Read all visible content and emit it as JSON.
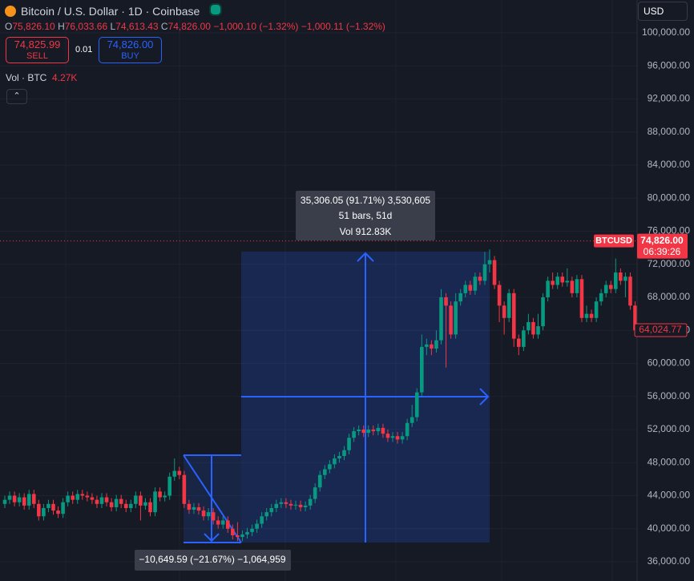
{
  "header": {
    "title": "Bitcoin / U.S. Dollar · 1D · Coinbase",
    "ohlc": [
      {
        "key": "O",
        "value": "75,826.10"
      },
      {
        "key": "H",
        "value": "76,033.66"
      },
      {
        "key": "L",
        "value": "74,613.43"
      },
      {
        "key": "C",
        "value": "74,826.00"
      }
    ],
    "change": "−1,000.10 (−1.32%)",
    "change_2": "−1,000.11 (−1.32%)",
    "sell_price": "74,825.99",
    "sell_label": "SELL",
    "quantity": "0.01",
    "buy_price": "74,826.00",
    "buy_label": "BUY",
    "volume_label": "Vol · BTC",
    "volume_value": "4.27K",
    "currency": "USD"
  },
  "chart_data": {
    "type": "candlestick",
    "up_color": "#089981",
    "down_color": "#f23645",
    "grid": true,
    "ylim": [
      33673,
      103976
    ],
    "yticks": [
      {
        "value": 36000,
        "label": "36,000.00"
      },
      {
        "value": 40000,
        "label": "40,000.00"
      },
      {
        "value": 44000,
        "label": "44,000.00"
      },
      {
        "value": 48000,
        "label": "48,000.00"
      },
      {
        "value": 52000,
        "label": "52,000.00"
      },
      {
        "value": 56000,
        "label": "56,000.00"
      },
      {
        "value": 60000,
        "label": "60,000.00"
      },
      {
        "value": 64000,
        "label": "64,000.00"
      },
      {
        "value": 68000,
        "label": "68,000.00"
      },
      {
        "value": 72000,
        "label": "72,000.00"
      },
      {
        "value": 76000,
        "label": "76,000.00"
      },
      {
        "value": 80000,
        "label": "80,000.00"
      },
      {
        "value": 84000,
        "label": "84,000.00"
      },
      {
        "value": 88000,
        "label": "88,000.00"
      },
      {
        "value": 92000,
        "label": "92,000.00"
      },
      {
        "value": 96000,
        "label": "96,000.00"
      },
      {
        "value": 100000,
        "label": "100,000.00"
      }
    ],
    "symbol": "BTCUSD",
    "last_price": {
      "value": 74826,
      "label": "74,826.00"
    },
    "countdown": "06:39:26",
    "marker": {
      "value": 64024.77,
      "label": "64,024.77"
    },
    "ohlc": [
      [
        43000,
        44000,
        42500,
        43500
      ],
      [
        43500,
        44500,
        43000,
        44000
      ],
      [
        44000,
        44500,
        42700,
        43200
      ],
      [
        43200,
        44300,
        42700,
        43800
      ],
      [
        43800,
        44300,
        42300,
        42800
      ],
      [
        42800,
        44700,
        42300,
        44200
      ],
      [
        44200,
        44700,
        42500,
        43000
      ],
      [
        43000,
        43500,
        41000,
        41500
      ],
      [
        41500,
        43000,
        41000,
        42500
      ],
      [
        42500,
        43500,
        42000,
        43000
      ],
      [
        43000,
        43500,
        41700,
        42200
      ],
      [
        42200,
        42700,
        41300,
        41800
      ],
      [
        41800,
        43700,
        41300,
        43200
      ],
      [
        43200,
        44500,
        42700,
        44000
      ],
      [
        44000,
        44500,
        43000,
        43500
      ],
      [
        43500,
        44700,
        43000,
        44200
      ],
      [
        44200,
        44700,
        43500,
        44000
      ],
      [
        44000,
        44500,
        43300,
        43800
      ],
      [
        43800,
        44300,
        43000,
        43500
      ],
      [
        43500,
        44000,
        42500,
        43000
      ],
      [
        43000,
        44300,
        42500,
        43800
      ],
      [
        43800,
        44300,
        42700,
        43200
      ],
      [
        43200,
        43700,
        42100,
        42600
      ],
      [
        42600,
        44100,
        42100,
        43600
      ],
      [
        43600,
        44100,
        42500,
        43000
      ],
      [
        43000,
        43500,
        42000,
        42500
      ],
      [
        42500,
        43500,
        42000,
        43000
      ],
      [
        43000,
        44500,
        42500,
        44000
      ],
      [
        44000,
        44500,
        41000,
        42800
      ],
      [
        42800,
        43700,
        42300,
        43200
      ],
      [
        43200,
        43700,
        41500,
        42000
      ],
      [
        42000,
        45000,
        41500,
        44500
      ],
      [
        44500,
        45000,
        43300,
        43800
      ],
      [
        43800,
        44500,
        43300,
        44000
      ],
      [
        44000,
        46800,
        43500,
        46300
      ],
      [
        46300,
        48500,
        45800,
        47000
      ],
      [
        47000,
        47500,
        46000,
        46500
      ],
      [
        46500,
        47000,
        42500,
        43000
      ],
      [
        43000,
        43500,
        41800,
        42300
      ],
      [
        42300,
        43100,
        41800,
        42600
      ],
      [
        42600,
        43100,
        41700,
        42200
      ],
      [
        42200,
        42700,
        41000,
        41500
      ],
      [
        41500,
        42500,
        41000,
        42000
      ],
      [
        42000,
        42500,
        40500,
        41000
      ],
      [
        41000,
        41500,
        40000,
        40500
      ],
      [
        40500,
        41500,
        40000,
        41000
      ],
      [
        41000,
        41500,
        39500,
        40000
      ],
      [
        40000,
        40500,
        38700,
        39200
      ],
      [
        39200,
        40800,
        38500,
        39000
      ],
      [
        39000,
        39800,
        38500,
        39300
      ],
      [
        39300,
        40100,
        38800,
        39600
      ],
      [
        39600,
        40500,
        39100,
        40000
      ],
      [
        40000,
        41100,
        39500,
        40600
      ],
      [
        40600,
        42000,
        40100,
        41500
      ],
      [
        41500,
        42500,
        41000,
        42000
      ],
      [
        42000,
        43000,
        41500,
        42500
      ],
      [
        42500,
        43500,
        42000,
        43000
      ],
      [
        43000,
        43700,
        42500,
        43200
      ],
      [
        43200,
        43700,
        42500,
        43000
      ],
      [
        43000,
        43500,
        42300,
        42800
      ],
      [
        42800,
        43400,
        42300,
        42900
      ],
      [
        42900,
        43400,
        42100,
        42600
      ],
      [
        42600,
        43300,
        42100,
        42800
      ],
      [
        42800,
        44100,
        42300,
        43600
      ],
      [
        43600,
        45500,
        43100,
        45000
      ],
      [
        45000,
        47000,
        44500,
        46500
      ],
      [
        46500,
        47700,
        46000,
        47200
      ],
      [
        47200,
        48300,
        46700,
        47800
      ],
      [
        47800,
        49000,
        47300,
        48500
      ],
      [
        48500,
        49300,
        48000,
        48800
      ],
      [
        48800,
        50000,
        48300,
        49500
      ],
      [
        49500,
        51500,
        49000,
        51000
      ],
      [
        51000,
        52300,
        50500,
        51800
      ],
      [
        51800,
        52500,
        51300,
        52000
      ],
      [
        52000,
        52500,
        51100,
        51600
      ],
      [
        51600,
        52500,
        51100,
        52000
      ],
      [
        52000,
        52500,
        51300,
        51800
      ],
      [
        51800,
        52700,
        51300,
        52200
      ],
      [
        52200,
        52700,
        51000,
        51500
      ],
      [
        51500,
        52000,
        50500,
        51000
      ],
      [
        51000,
        51700,
        50500,
        51200
      ],
      [
        51200,
        51700,
        50300,
        50800
      ],
      [
        50800,
        51700,
        50300,
        51200
      ],
      [
        51200,
        53300,
        50700,
        52800
      ],
      [
        52800,
        55000,
        52300,
        53500
      ],
      [
        53500,
        57000,
        53000,
        56500
      ],
      [
        56500,
        63500,
        56000,
        62000
      ],
      [
        62000,
        63000,
        61000,
        62300
      ],
      [
        62300,
        62800,
        61000,
        61800
      ],
      [
        61800,
        64000,
        61300,
        62800
      ],
      [
        62800,
        69000,
        62300,
        68000
      ],
      [
        68000,
        68500,
        59500,
        67000
      ],
      [
        67000,
        67500,
        63000,
        63500
      ],
      [
        63500,
        68500,
        63000,
        67500
      ],
      [
        67500,
        69000,
        67000,
        68500
      ],
      [
        68500,
        70000,
        68000,
        69500
      ],
      [
        69500,
        70000,
        68300,
        68800
      ],
      [
        68800,
        71000,
        68300,
        70500
      ],
      [
        70500,
        71000,
        69500,
        70000
      ],
      [
        70000,
        73500,
        69500,
        72000
      ],
      [
        72000,
        73800,
        71000,
        72500
      ],
      [
        72500,
        73000,
        69000,
        69500
      ],
      [
        69500,
        70000,
        65000,
        67000
      ],
      [
        67000,
        67500,
        63500,
        65500
      ],
      [
        65500,
        69000,
        65000,
        68500
      ],
      [
        68500,
        69000,
        62000,
        63000
      ],
      [
        63000,
        63500,
        61000,
        62000
      ],
      [
        62000,
        64500,
        61500,
        64000
      ],
      [
        64000,
        66000,
        63500,
        65000
      ],
      [
        65000,
        65500,
        63000,
        63500
      ],
      [
        63500,
        66000,
        63000,
        64500
      ],
      [
        64500,
        68500,
        64000,
        68000
      ],
      [
        68000,
        70500,
        67500,
        70000
      ],
      [
        70000,
        71000,
        69000,
        69500
      ],
      [
        69500,
        71000,
        69000,
        70500
      ],
      [
        70500,
        71000,
        69300,
        69800
      ],
      [
        69800,
        71500,
        69300,
        70000
      ],
      [
        70000,
        70500,
        68000,
        68500
      ],
      [
        68500,
        70700,
        68000,
        70200
      ],
      [
        70200,
        70700,
        65000,
        65500
      ],
      [
        65500,
        67000,
        65000,
        66000
      ],
      [
        66000,
        66500,
        65000,
        65500
      ],
      [
        65500,
        68000,
        65000,
        67500
      ],
      [
        67500,
        69000,
        67000,
        68500
      ],
      [
        68500,
        70000,
        68000,
        69500
      ],
      [
        69500,
        70000,
        68500,
        69000
      ],
      [
        69000,
        72700,
        68500,
        71000
      ],
      [
        71000,
        71500,
        69500,
        70000
      ],
      [
        70000,
        71000,
        68000,
        70500
      ],
      [
        70500,
        71000,
        66500,
        67000
      ],
      [
        67000,
        67500,
        64000,
        64000
      ]
    ]
  },
  "measure": {
    "up_change": "35,306.05 (91.71%) 3,530,605",
    "up_bars": "51 bars, 51d",
    "up_volume": "Vol 912.83K",
    "down_change": "−10,649.59 (−21.67%) −1,064,959"
  }
}
